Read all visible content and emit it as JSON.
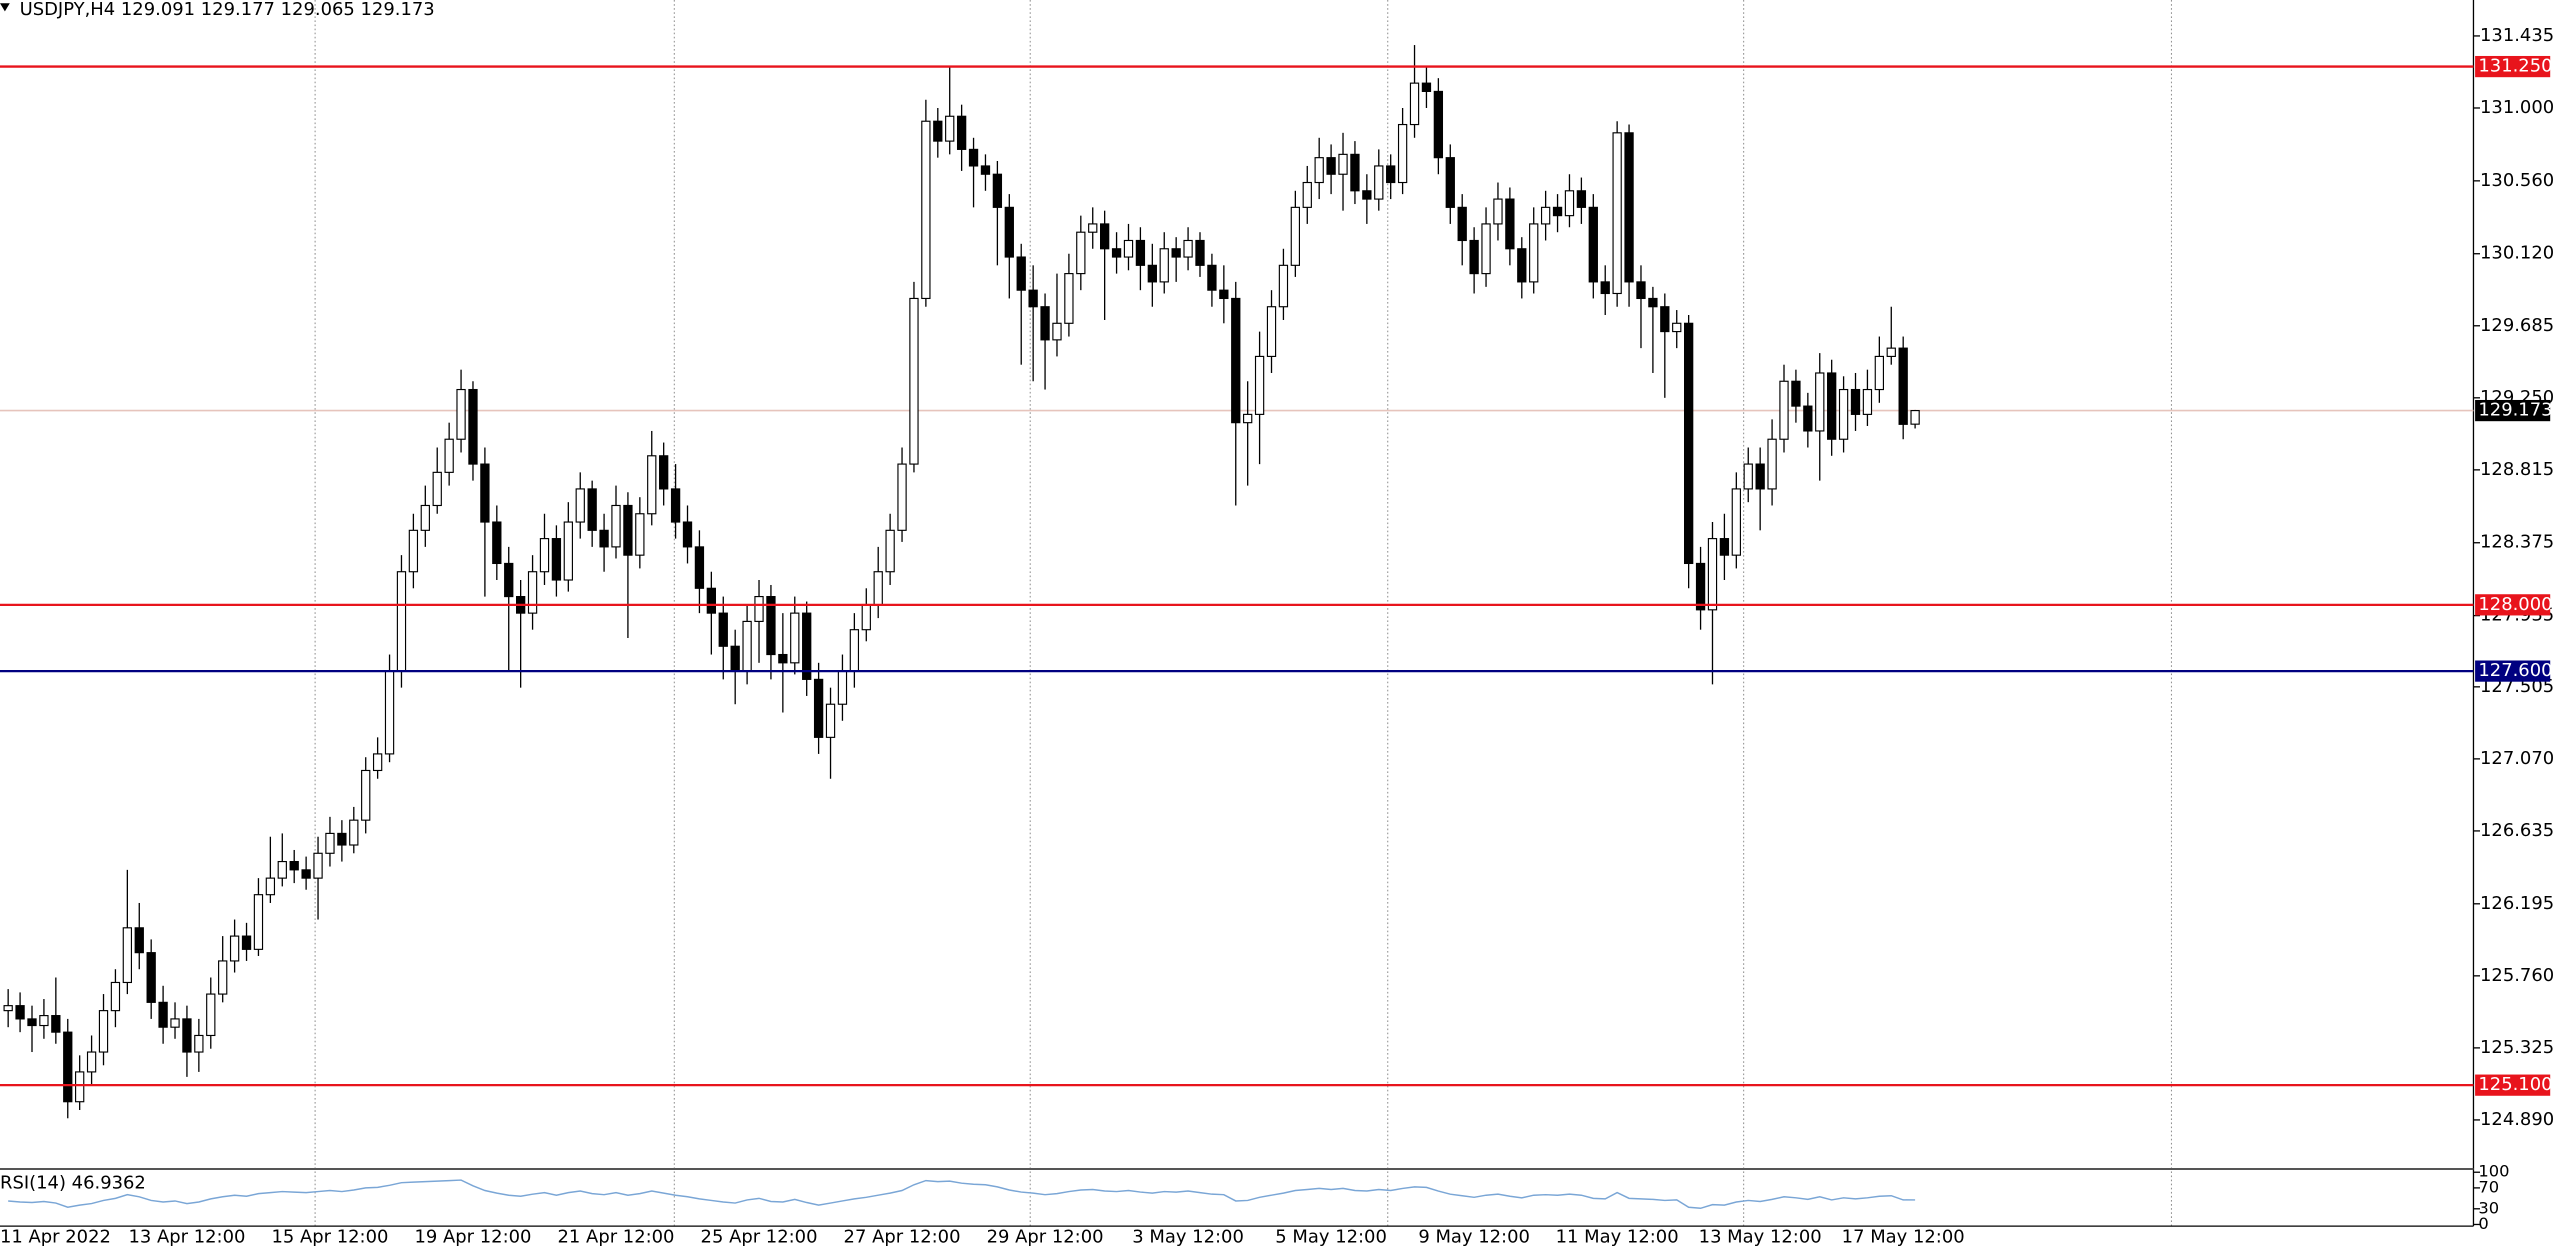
{
  "chart_data": {
    "type": "candlestick",
    "title": "USDJPY,H4  129.091 129.177 129.065 129.173",
    "categories": [
      "11 Apr 2022",
      null,
      null,
      null,
      null,
      null,
      null,
      null,
      null,
      null,
      null,
      null,
      null,
      null,
      null,
      "13 Apr 12:00",
      null,
      null,
      null,
      null,
      null,
      null,
      null,
      null,
      null,
      null,
      null,
      "15 Apr 12:00",
      null,
      null,
      null,
      null,
      null,
      null,
      null,
      null,
      null,
      null,
      null,
      "19 Apr 12:00",
      null,
      null,
      null,
      null,
      null,
      null,
      null,
      null,
      null,
      null,
      null,
      "21 Apr 12:00",
      null,
      null,
      null,
      null,
      null,
      null,
      null,
      null,
      null,
      null,
      null,
      "25 Apr 12:00",
      null,
      null,
      null,
      null,
      null,
      null,
      null,
      null,
      null,
      null,
      null,
      "27 Apr 12:00",
      null,
      null,
      null,
      null,
      null,
      null,
      null,
      null,
      null,
      null,
      null,
      "29 Apr 12:00",
      null,
      null,
      null,
      null,
      null,
      null,
      null,
      null,
      null,
      null,
      null,
      "3 May 12:00",
      null,
      null,
      null,
      null,
      null,
      null,
      null,
      null,
      null,
      null,
      null,
      "5 May 12:00",
      null,
      null,
      null,
      null,
      null,
      null,
      null,
      null,
      null,
      null,
      null,
      "9 May 12:00",
      null,
      null,
      null,
      null,
      null,
      null,
      null,
      null,
      null,
      null,
      null,
      "11 May 12:00",
      null,
      null,
      null,
      null,
      null,
      null,
      null,
      null,
      null,
      null,
      null,
      "13 May 12:00",
      null,
      null,
      null,
      null,
      null,
      null,
      null,
      null,
      null,
      null,
      null,
      "17 May 12:00",
      null
    ],
    "open": [
      125.55,
      125.58,
      125.5,
      125.46,
      125.52,
      125.42,
      125.0,
      125.18,
      125.3,
      125.55,
      125.72,
      126.05,
      125.9,
      125.6,
      125.45,
      125.5,
      125.3,
      125.4,
      125.65,
      125.85,
      126.0,
      125.92,
      126.25,
      126.35,
      126.45,
      126.4,
      126.35,
      126.5,
      126.62,
      126.55,
      126.7,
      127.0,
      127.1,
      127.6,
      128.2,
      128.45,
      128.6,
      128.8,
      129.0,
      129.3,
      128.85,
      128.5,
      128.25,
      128.05,
      127.95,
      128.2,
      128.4,
      128.15,
      128.5,
      128.7,
      128.45,
      128.35,
      128.6,
      128.3,
      128.55,
      128.9,
      128.7,
      128.5,
      128.35,
      128.1,
      127.95,
      127.75,
      127.6,
      127.9,
      128.05,
      127.7,
      127.65,
      127.95,
      127.55,
      127.2,
      127.4,
      127.6,
      127.85,
      128.0,
      128.2,
      128.45,
      128.85,
      129.85,
      130.92,
      130.8,
      130.95,
      130.75,
      130.65,
      130.6,
      130.4,
      130.1,
      129.9,
      129.8,
      129.6,
      129.7,
      130.0,
      130.25,
      130.3,
      130.15,
      130.1,
      130.2,
      130.05,
      129.95,
      130.15,
      130.1,
      130.2,
      130.05,
      129.9,
      129.85,
      129.1,
      129.15,
      129.5,
      129.8,
      130.05,
      130.4,
      130.55,
      130.7,
      130.6,
      130.72,
      130.5,
      130.45,
      130.65,
      130.55,
      130.9,
      131.15,
      131.1,
      130.7,
      130.4,
      130.2,
      130.0,
      130.3,
      130.45,
      130.15,
      129.95,
      130.3,
      130.4,
      130.35,
      130.5,
      130.4,
      129.95,
      129.88,
      130.85,
      129.95,
      129.85,
      129.8,
      129.65,
      129.7,
      128.25,
      127.97,
      128.4,
      128.3,
      128.7,
      128.85,
      128.7,
      129.0,
      129.35,
      129.2,
      129.05,
      129.4,
      129.0,
      129.3,
      129.15,
      129.3,
      129.5,
      129.55,
      129.091
    ],
    "high": [
      125.68,
      125.66,
      125.58,
      125.62,
      125.75,
      125.5,
      125.28,
      125.4,
      125.65,
      125.8,
      126.4,
      126.2,
      125.98,
      125.7,
      125.6,
      125.58,
      125.5,
      125.75,
      126.0,
      126.1,
      126.08,
      126.35,
      126.6,
      126.62,
      126.52,
      126.48,
      126.6,
      126.72,
      126.7,
      126.78,
      127.08,
      127.2,
      127.7,
      128.3,
      128.55,
      128.72,
      128.95,
      129.1,
      129.42,
      129.35,
      128.95,
      128.6,
      128.35,
      128.15,
      128.3,
      128.55,
      128.48,
      128.62,
      128.8,
      128.75,
      128.55,
      128.72,
      128.68,
      128.65,
      129.05,
      128.98,
      128.85,
      128.6,
      128.45,
      128.2,
      128.05,
      127.85,
      128.0,
      128.15,
      128.12,
      127.95,
      128.05,
      128.02,
      127.65,
      127.5,
      127.7,
      127.95,
      128.1,
      128.35,
      128.55,
      128.95,
      129.95,
      131.05,
      131.0,
      131.25,
      131.02,
      130.82,
      130.72,
      130.68,
      130.48,
      130.18,
      130.05,
      129.88,
      130.0,
      130.12,
      130.35,
      130.4,
      130.38,
      130.25,
      130.3,
      130.28,
      130.18,
      130.25,
      130.22,
      130.28,
      130.25,
      130.12,
      130.05,
      129.95,
      129.35,
      129.65,
      129.9,
      130.15,
      130.5,
      130.65,
      130.82,
      130.78,
      130.85,
      130.8,
      130.6,
      130.75,
      130.72,
      131.0,
      131.38,
      131.25,
      131.18,
      130.78,
      130.48,
      130.28,
      130.4,
      130.55,
      130.52,
      130.22,
      130.4,
      130.5,
      130.48,
      130.6,
      130.58,
      130.48,
      130.05,
      130.92,
      130.9,
      130.05,
      129.92,
      129.88,
      129.78,
      129.75,
      128.35,
      128.5,
      128.55,
      128.8,
      128.95,
      128.95,
      129.12,
      129.45,
      129.42,
      129.28,
      129.52,
      129.48,
      129.38,
      129.4,
      129.42,
      129.62,
      129.8,
      129.62,
      129.177
    ],
    "low": [
      125.45,
      125.42,
      125.3,
      125.38,
      125.35,
      124.9,
      124.95,
      125.1,
      125.22,
      125.45,
      125.65,
      125.8,
      125.5,
      125.35,
      125.38,
      125.15,
      125.18,
      125.32,
      125.6,
      125.78,
      125.85,
      125.88,
      126.2,
      126.3,
      126.32,
      126.28,
      126.1,
      126.42,
      126.45,
      126.5,
      126.62,
      126.95,
      127.05,
      127.5,
      128.1,
      128.35,
      128.55,
      128.72,
      128.92,
      128.75,
      128.05,
      128.15,
      127.6,
      127.5,
      127.85,
      128.12,
      128.05,
      128.08,
      128.4,
      128.35,
      128.2,
      128.28,
      127.8,
      128.22,
      128.48,
      128.6,
      128.4,
      128.25,
      127.95,
      127.7,
      127.55,
      127.4,
      127.52,
      127.65,
      127.55,
      127.35,
      127.58,
      127.45,
      127.1,
      126.95,
      127.3,
      127.5,
      127.78,
      127.92,
      128.12,
      128.38,
      128.8,
      129.8,
      130.7,
      130.72,
      130.62,
      130.4,
      130.5,
      130.05,
      129.85,
      129.45,
      129.35,
      129.3,
      129.5,
      129.62,
      129.9,
      130.15,
      129.72,
      130.0,
      130.02,
      129.9,
      129.8,
      129.88,
      129.95,
      130.02,
      129.98,
      129.8,
      129.7,
      128.6,
      128.72,
      128.85,
      129.4,
      129.72,
      129.98,
      130.3,
      130.45,
      130.48,
      130.38,
      130.42,
      130.3,
      130.38,
      130.45,
      130.48,
      130.82,
      131.0,
      130.6,
      130.3,
      130.05,
      129.88,
      129.92,
      130.2,
      130.05,
      129.85,
      129.88,
      130.2,
      130.25,
      130.28,
      130.3,
      129.85,
      129.75,
      129.8,
      129.8,
      129.55,
      129.4,
      129.25,
      129.55,
      128.1,
      127.85,
      127.52,
      128.15,
      128.22,
      128.62,
      128.45,
      128.6,
      128.92,
      129.1,
      128.95,
      128.75,
      128.9,
      128.92,
      129.05,
      129.08,
      129.22,
      129.45,
      129.0,
      129.065
    ],
    "close": [
      125.58,
      125.5,
      125.46,
      125.52,
      125.42,
      125.0,
      125.18,
      125.3,
      125.55,
      125.72,
      126.05,
      125.9,
      125.6,
      125.45,
      125.5,
      125.3,
      125.4,
      125.65,
      125.85,
      126.0,
      125.92,
      126.25,
      126.35,
      126.45,
      126.4,
      126.35,
      126.5,
      126.62,
      126.55,
      126.7,
      127.0,
      127.1,
      127.6,
      128.2,
      128.45,
      128.6,
      128.8,
      129.0,
      129.3,
      128.85,
      128.5,
      128.25,
      128.05,
      127.95,
      128.2,
      128.4,
      128.15,
      128.5,
      128.7,
      128.45,
      128.35,
      128.6,
      128.3,
      128.55,
      128.9,
      128.7,
      128.5,
      128.35,
      128.1,
      127.95,
      127.75,
      127.6,
      127.9,
      128.05,
      127.7,
      127.65,
      127.95,
      127.55,
      127.2,
      127.4,
      127.6,
      127.85,
      128.0,
      128.2,
      128.45,
      128.85,
      129.85,
      130.92,
      130.8,
      130.95,
      130.75,
      130.65,
      130.6,
      130.4,
      130.1,
      129.9,
      129.8,
      129.6,
      129.7,
      130.0,
      130.25,
      130.3,
      130.15,
      130.1,
      130.2,
      130.05,
      129.95,
      130.15,
      130.1,
      130.2,
      130.05,
      129.9,
      129.85,
      129.1,
      129.15,
      129.5,
      129.8,
      130.05,
      130.4,
      130.55,
      130.7,
      130.6,
      130.72,
      130.5,
      130.45,
      130.65,
      130.55,
      130.9,
      131.15,
      131.1,
      130.7,
      130.4,
      130.2,
      130.0,
      130.3,
      130.45,
      130.15,
      129.95,
      130.3,
      130.4,
      130.35,
      130.5,
      130.4,
      129.95,
      129.88,
      130.85,
      129.95,
      129.85,
      129.8,
      129.65,
      129.7,
      128.25,
      127.97,
      128.4,
      128.3,
      128.7,
      128.85,
      128.7,
      129.0,
      129.35,
      129.2,
      129.05,
      129.4,
      129.0,
      129.3,
      129.15,
      129.3,
      129.5,
      129.55,
      129.09,
      129.173
    ],
    "bull_color": "#ffffff",
    "bear_color": "#000000",
    "ylim": [
      124.594,
      131.652
    ],
    "yticks": [
      131.435,
      {
        "value": 131.0,
        "label": "131.000"
      },
      {
        "value": 130.56,
        "label": "130.560"
      },
      {
        "value": 130.12,
        "label": "130.120"
      },
      129.685,
      {
        "value": 129.25,
        "label": "129.250"
      },
      128.815,
      128.375,
      127.935,
      127.505,
      {
        "value": 127.07,
        "label": "127.070"
      },
      126.635,
      126.195,
      {
        "value": 125.76,
        "label": "125.760"
      },
      125.325,
      {
        "value": 124.89,
        "label": "124.890"
      }
    ],
    "levels": [
      {
        "value": 131.25,
        "label": "131.250",
        "color": "#e8141c"
      },
      {
        "value": 128.0,
        "label": "128.000",
        "color": "#e8141c"
      },
      {
        "value": 127.6,
        "label": "127.600",
        "color": "#000080"
      },
      {
        "value": 125.1,
        "label": "125.100",
        "color": "#e8141c"
      }
    ],
    "current": {
      "value": 129.173,
      "label": "129.173",
      "color": "#e6c4bc"
    },
    "indicator": {
      "title": "RSI(14) 46.9362",
      "color": "#7aa6d6",
      "ylim": [
        0,
        100
      ],
      "yticks": [
        0,
        30,
        70,
        100
      ],
      "values": [
        45,
        43,
        42,
        44,
        41,
        33,
        37,
        40,
        46,
        50,
        57,
        53,
        46,
        43,
        45,
        40,
        43,
        49,
        53,
        56,
        54,
        59,
        61,
        63,
        62,
        61,
        63,
        65,
        63,
        66,
        70,
        71,
        75,
        80,
        81,
        82,
        83,
        84,
        85,
        74,
        65,
        60,
        56,
        54,
        58,
        61,
        56,
        61,
        64,
        59,
        57,
        61,
        56,
        59,
        64,
        60,
        56,
        53,
        49,
        46,
        43,
        41,
        47,
        50,
        44,
        43,
        48,
        42,
        37,
        41,
        45,
        49,
        52,
        56,
        60,
        65,
        76,
        84,
        82,
        83,
        79,
        77,
        76,
        72,
        66,
        62,
        60,
        57,
        59,
        63,
        66,
        67,
        64,
        63,
        65,
        62,
        60,
        63,
        62,
        64,
        61,
        58,
        57,
        45,
        46,
        52,
        56,
        60,
        65,
        67,
        69,
        67,
        69,
        65,
        64,
        67,
        65,
        69,
        72,
        71,
        64,
        58,
        55,
        52,
        56,
        58,
        54,
        51,
        56,
        57,
        56,
        58,
        56,
        50,
        49,
        61,
        50,
        49,
        48,
        46,
        47,
        33,
        31,
        38,
        37,
        43,
        46,
        44,
        48,
        53,
        51,
        48,
        53,
        47,
        51,
        49,
        51,
        54,
        55,
        47,
        46.9362
      ]
    }
  }
}
